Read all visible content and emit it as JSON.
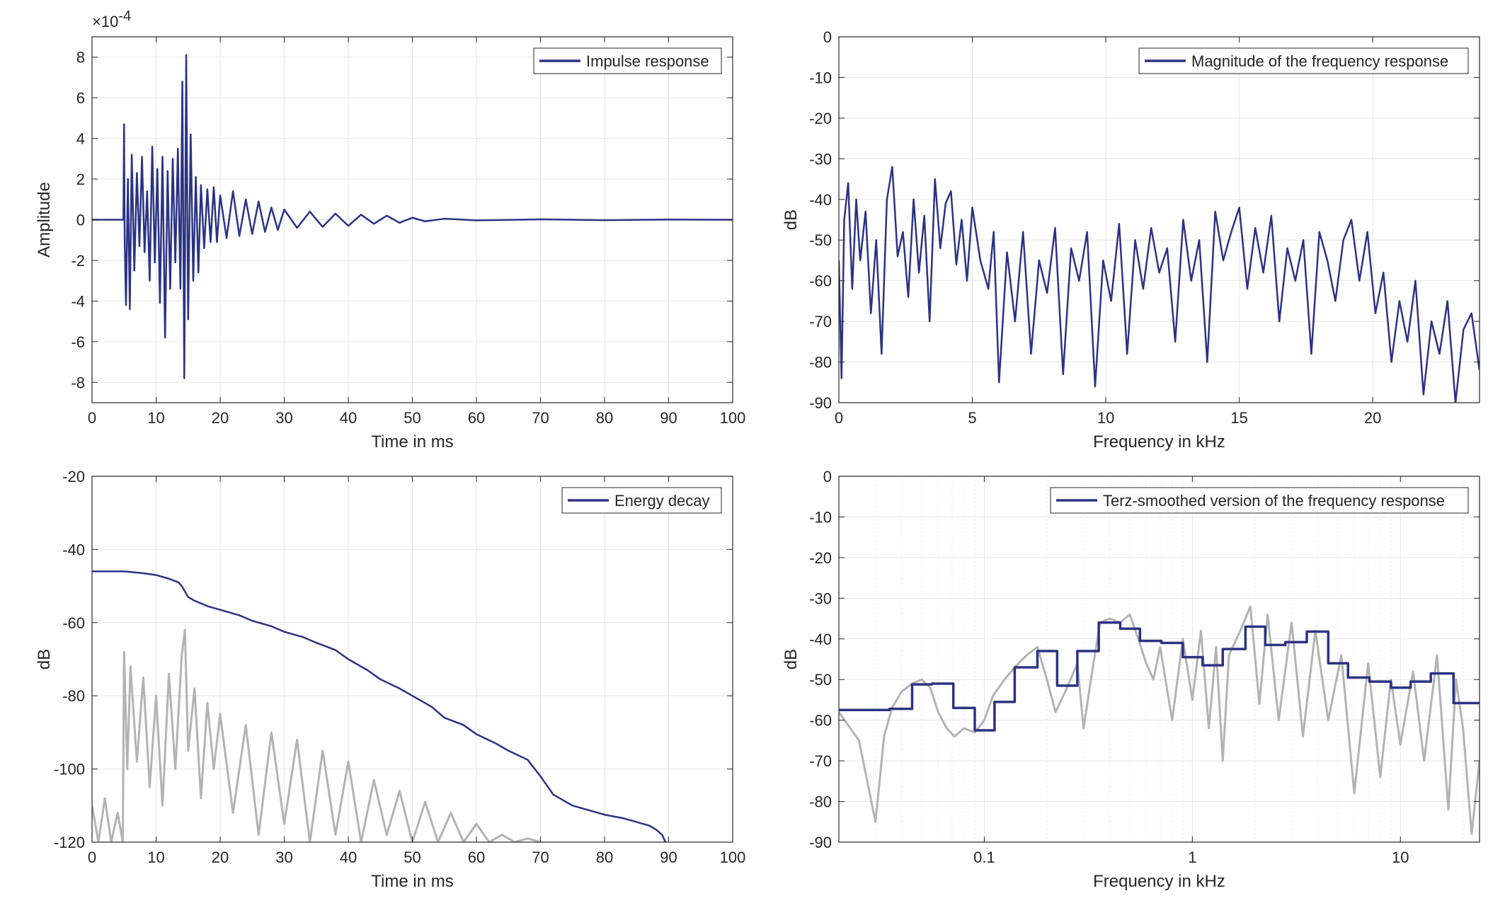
{
  "colors": {
    "series": "#2b3384",
    "gray": "#b3b3b3",
    "grid": "#e6e6e6",
    "axis": "#262626",
    "background": "#ffffff"
  },
  "chart_data": [
    {
      "type": "line",
      "panel": "top-left",
      "xlabel": "Time in ms",
      "ylabel": "Amplitude",
      "exponent_label": "×10",
      "exponent_power": "-4",
      "xlim": [
        0,
        100
      ],
      "ylim": [
        -9,
        9
      ],
      "xticks": [
        0,
        10,
        20,
        30,
        40,
        50,
        60,
        70,
        80,
        90,
        100
      ],
      "yticks": [
        -8,
        -6,
        -4,
        -2,
        0,
        2,
        4,
        6,
        8
      ],
      "grid": true,
      "legend": "top-right",
      "series": [
        {
          "name": "Impulse response",
          "color": "#2b3384",
          "x": [
            0,
            4.9,
            5.0,
            5.1,
            5.3,
            5.6,
            5.9,
            6.2,
            6.6,
            7.0,
            7.4,
            7.8,
            8.2,
            8.6,
            9.0,
            9.4,
            9.8,
            10.2,
            10.6,
            11.0,
            11.4,
            11.8,
            12.2,
            12.6,
            13.0,
            13.4,
            13.8,
            14.1,
            14.4,
            14.7,
            15.0,
            15.4,
            15.8,
            16.2,
            16.6,
            17.0,
            17.5,
            18.0,
            18.5,
            19.0,
            19.5,
            20.0,
            21.0,
            22.0,
            23.0,
            24.0,
            25.0,
            26.0,
            27.0,
            28.0,
            29.0,
            30.0,
            32.0,
            34.0,
            36.0,
            38.0,
            40.0,
            42.0,
            44.0,
            46.0,
            48.0,
            50.0,
            52.0,
            55.0,
            60.0,
            70.0,
            80.0,
            90.0,
            100.0
          ],
          "y": [
            0,
            0,
            4.7,
            -1.0,
            -4.2,
            2.0,
            -4.4,
            3.2,
            -2.5,
            2.3,
            -1.3,
            3.1,
            -1.6,
            1.4,
            -3.0,
            3.6,
            -2.1,
            2.5,
            -4.1,
            3.1,
            -5.8,
            2.4,
            -3.4,
            3.0,
            -2.1,
            3.5,
            -3.4,
            6.8,
            -7.8,
            8.1,
            -4.9,
            4.2,
            -3.0,
            2.1,
            -2.6,
            1.7,
            -1.4,
            1.5,
            -1.1,
            1.6,
            -1.1,
            1.2,
            -0.9,
            1.4,
            -0.8,
            1.0,
            -0.7,
            0.9,
            -0.6,
            0.6,
            -0.5,
            0.5,
            -0.4,
            0.4,
            -0.35,
            0.3,
            -0.3,
            0.25,
            -0.2,
            0.2,
            -0.15,
            0.1,
            -0.08,
            0.05,
            -0.03,
            0.02,
            -0.02,
            0.01,
            0
          ]
        }
      ]
    },
    {
      "type": "line",
      "panel": "top-right",
      "xlabel": "Frequency in kHz",
      "ylabel": "dB",
      "xlim": [
        0,
        24
      ],
      "ylim": [
        -90,
        0
      ],
      "xticks": [
        0,
        5,
        10,
        15,
        20
      ],
      "yticks": [
        0,
        -10,
        -20,
        -30,
        -40,
        -50,
        -60,
        -70,
        -80,
        -90
      ],
      "grid": true,
      "legend": "top-right",
      "series": [
        {
          "name": "Magnitude of the frequency response",
          "color": "#2b3384",
          "x": [
            0,
            0.1,
            0.2,
            0.35,
            0.5,
            0.65,
            0.8,
            1.0,
            1.2,
            1.4,
            1.6,
            1.8,
            2.0,
            2.2,
            2.4,
            2.6,
            2.8,
            3.0,
            3.2,
            3.4,
            3.6,
            3.8,
            4.0,
            4.2,
            4.4,
            4.6,
            4.8,
            5.0,
            5.3,
            5.6,
            5.8,
            6.0,
            6.3,
            6.6,
            6.9,
            7.2,
            7.5,
            7.8,
            8.1,
            8.4,
            8.7,
            9.0,
            9.3,
            9.6,
            9.9,
            10.2,
            10.5,
            10.8,
            11.1,
            11.4,
            11.7,
            12.0,
            12.3,
            12.6,
            12.9,
            13.2,
            13.5,
            13.8,
            14.1,
            14.4,
            14.7,
            15.0,
            15.3,
            15.6,
            15.9,
            16.2,
            16.5,
            16.8,
            17.1,
            17.4,
            17.7,
            18.0,
            18.3,
            18.6,
            18.9,
            19.2,
            19.5,
            19.8,
            20.1,
            20.4,
            20.7,
            21.0,
            21.3,
            21.6,
            21.9,
            22.2,
            22.5,
            22.8,
            23.1,
            23.4,
            23.7,
            24.0
          ],
          "y": [
            -55,
            -84,
            -45,
            -36,
            -62,
            -40,
            -55,
            -43,
            -68,
            -50,
            -78,
            -40,
            -32,
            -54,
            -48,
            -64,
            -40,
            -58,
            -44,
            -70,
            -35,
            -52,
            -41,
            -38,
            -56,
            -45,
            -60,
            -42,
            -55,
            -62,
            -48,
            -85,
            -53,
            -70,
            -48,
            -78,
            -55,
            -63,
            -47,
            -83,
            -52,
            -60,
            -48,
            -86,
            -55,
            -65,
            -46,
            -78,
            -50,
            -62,
            -47,
            -58,
            -52,
            -75,
            -45,
            -60,
            -50,
            -80,
            -43,
            -55,
            -48,
            -42,
            -62,
            -47,
            -58,
            -44,
            -70,
            -52,
            -60,
            -50,
            -78,
            -48,
            -55,
            -65,
            -50,
            -45,
            -60,
            -48,
            -68,
            -58,
            -80,
            -65,
            -75,
            -60,
            -88,
            -70,
            -78,
            -65,
            -90,
            -72,
            -68,
            -82
          ]
        }
      ]
    },
    {
      "type": "line",
      "panel": "bottom-left",
      "xlabel": "Time in ms",
      "ylabel": "dB",
      "xlim": [
        0,
        100
      ],
      "ylim": [
        -120,
        -20
      ],
      "xticks": [
        0,
        10,
        20,
        30,
        40,
        50,
        60,
        70,
        80,
        90,
        100
      ],
      "yticks": [
        -20,
        -40,
        -60,
        -80,
        -100,
        -120
      ],
      "grid": true,
      "legend": "top-right",
      "series": [
        {
          "name": "Energy decay",
          "color": "#2b3384",
          "x": [
            0,
            5,
            8,
            10,
            12,
            13.5,
            14,
            15,
            16,
            18,
            20,
            23,
            25,
            28,
            30,
            33,
            35,
            38,
            40,
            43,
            45,
            48,
            50,
            53,
            55,
            58,
            60,
            63,
            65,
            68,
            70,
            72,
            75,
            78,
            80,
            83,
            85,
            87,
            88,
            89,
            89.5
          ],
          "y": [
            -46,
            -46,
            -46.5,
            -47,
            -48,
            -49,
            -50,
            -53,
            -54,
            -55.5,
            -56.5,
            -58,
            -59.5,
            -61,
            -62.5,
            -64,
            -65.5,
            -67.5,
            -70,
            -73,
            -75.5,
            -78,
            -80,
            -83,
            -86,
            -88,
            -90.5,
            -93,
            -95,
            -97.5,
            -102,
            -107,
            -110,
            -111.5,
            -112.5,
            -113.5,
            -114.5,
            -115.5,
            -116.5,
            -118,
            -120
          ]
        },
        {
          "name": "",
          "color": "#b3b3b3",
          "x": [
            0,
            1,
            2,
            3,
            4,
            4.8,
            5,
            5.5,
            6,
            7,
            8,
            9,
            10,
            11,
            12,
            13,
            14,
            14.5,
            15,
            16,
            17,
            18,
            19,
            20,
            22,
            24,
            26,
            28,
            30,
            32,
            34,
            36,
            38,
            40,
            42,
            44,
            46,
            48,
            50,
            52,
            54,
            56,
            58,
            60,
            62,
            64,
            66,
            68,
            70
          ],
          "y": [
            -110,
            -120,
            -108,
            -120,
            -112,
            -120,
            -68,
            -100,
            -72,
            -98,
            -75,
            -105,
            -80,
            -110,
            -74,
            -100,
            -69,
            -62,
            -95,
            -78,
            -108,
            -82,
            -100,
            -85,
            -112,
            -88,
            -118,
            -90,
            -115,
            -92,
            -120,
            -95,
            -118,
            -98,
            -120,
            -103,
            -118,
            -106,
            -120,
            -109,
            -120,
            -112,
            -120,
            -115,
            -120,
            -118,
            -120,
            -119,
            -120
          ]
        }
      ]
    },
    {
      "type": "line",
      "panel": "bottom-right",
      "xlabel": "Frequency in kHz",
      "ylabel": "dB",
      "xscale": "log",
      "xlim": [
        0.02,
        24
      ],
      "ylim": [
        -90,
        0
      ],
      "xticks": [
        0.1,
        1,
        10
      ],
      "xticklabels": [
        "0.1",
        "1",
        "10"
      ],
      "yticks": [
        0,
        -10,
        -20,
        -30,
        -40,
        -50,
        -60,
        -70,
        -80,
        -90
      ],
      "grid": true,
      "legend": "top-right",
      "series": [
        {
          "name": "Terz-smoothed version of the frequency response",
          "color": "#2b3384",
          "step": true,
          "x": [
            0.02,
            0.035,
            0.045,
            0.056,
            0.071,
            0.09,
            0.112,
            0.14,
            0.18,
            0.224,
            0.28,
            0.355,
            0.45,
            0.56,
            0.71,
            0.9,
            1.12,
            1.4,
            1.8,
            2.24,
            2.8,
            3.55,
            4.5,
            5.6,
            7.1,
            9.0,
            11.2,
            14.0,
            18.0,
            24.0
          ],
          "y": [
            -57.5,
            -57.2,
            -51.2,
            -51.0,
            -57.0,
            -62.5,
            -55.5,
            -47.0,
            -43.0,
            -51.5,
            -43.0,
            -36.0,
            -37.5,
            -40.5,
            -41.0,
            -44.5,
            -46.5,
            -42.5,
            -37.0,
            -41.5,
            -40.8,
            -38.2,
            -46.0,
            -49.5,
            -50.5,
            -52.0,
            -50.5,
            -48.5,
            -55.8,
            -55.8
          ]
        },
        {
          "name": "",
          "color": "#b3b3b3",
          "x": [
            0.02,
            0.025,
            0.03,
            0.033,
            0.036,
            0.04,
            0.045,
            0.05,
            0.055,
            0.06,
            0.066,
            0.072,
            0.08,
            0.09,
            0.1,
            0.11,
            0.125,
            0.14,
            0.16,
            0.18,
            0.2,
            0.22,
            0.25,
            0.28,
            0.3,
            0.33,
            0.36,
            0.4,
            0.45,
            0.5,
            0.55,
            0.6,
            0.65,
            0.7,
            0.8,
            0.9,
            1.0,
            1.1,
            1.2,
            1.3,
            1.4,
            1.5,
            1.7,
            1.9,
            2.1,
            2.3,
            2.6,
            3.0,
            3.4,
            3.9,
            4.5,
            5.2,
            6.0,
            7.0,
            8.0,
            9.0,
            10.0,
            11.5,
            13.0,
            15.0,
            17.0,
            18.5,
            20.0,
            22.0,
            24.0
          ],
          "y": [
            -58,
            -65,
            -85,
            -64,
            -57,
            -53,
            -51,
            -50,
            -52,
            -58,
            -62,
            -64,
            -62,
            -63,
            -60,
            -54,
            -50,
            -47,
            -44,
            -42,
            -50,
            -58,
            -52,
            -46,
            -62,
            -48,
            -36,
            -35,
            -36,
            -34,
            -40,
            -46,
            -50,
            -42,
            -60,
            -40,
            -55,
            -38,
            -62,
            -42,
            -70,
            -44,
            -38,
            -32,
            -56,
            -34,
            -60,
            -36,
            -64,
            -38,
            -60,
            -44,
            -78,
            -46,
            -74,
            -50,
            -66,
            -48,
            -70,
            -44,
            -82,
            -50,
            -62,
            -88,
            -70
          ]
        }
      ]
    }
  ]
}
